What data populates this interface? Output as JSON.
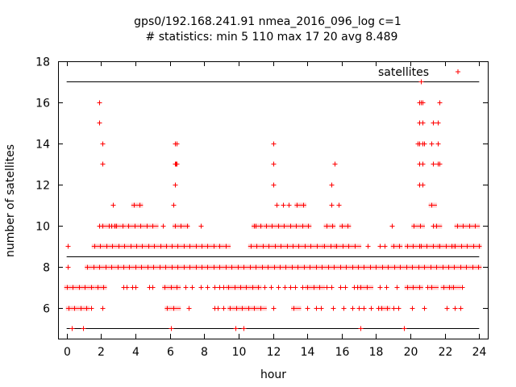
{
  "chart_data": {
    "type": "scatter",
    "title": "gps0/192.168.241.91 nmea_2016_096_log c=1",
    "subtitle": "# statistics: min 5 110 max 17 20 avg 8.489",
    "xlabel": "hour",
    "ylabel": "number of satellites",
    "xlim": [
      -0.5,
      24.5
    ],
    "ylim": [
      4.5,
      18
    ],
    "xticks": [
      0,
      2,
      4,
      6,
      8,
      10,
      12,
      14,
      16,
      18,
      20,
      22,
      24
    ],
    "yticks": [
      6,
      8,
      10,
      12,
      14,
      16,
      18
    ],
    "grid": false,
    "legend": {
      "position": "top-right",
      "entries": [
        "satellites"
      ]
    },
    "reference_lines": [
      {
        "label": "max",
        "y": 17
      },
      {
        "label": "avg",
        "y": 8.489
      },
      {
        "label": "min",
        "y": 5
      }
    ],
    "series": [
      {
        "name": "satellites",
        "color": "#ff0000",
        "marker": "plus",
        "levels": [
          {
            "y": 5,
            "x": [
              0.3,
              0.95,
              6.05,
              9.8,
              10.3,
              17.1,
              19.6
            ]
          },
          {
            "y": 6,
            "ranges": [
              [
                0.1,
                1.2
              ],
              [
                5.85,
                6.5
              ],
              [
                9.5,
                11.5
              ],
              [
                13.2,
                13.5
              ],
              [
                18.3,
                18.7
              ]
            ],
            "x": [
              1.4,
              2.1,
              7.1,
              8.6,
              8.8,
              9.1,
              12.0,
              14.0,
              14.5,
              14.8,
              15.5,
              16.1,
              16.6,
              17.0,
              17.3,
              17.7,
              18.1,
              19.0,
              19.3,
              20.1,
              20.8,
              22.1,
              22.6,
              22.9
            ]
          },
          {
            "y": 7,
            "ranges": [
              [
                0,
                1.5
              ],
              [
                1.8,
                2.2
              ],
              [
                5.7,
                6.5
              ],
              [
                9.4,
                11.2
              ],
              [
                14.0,
                14.9
              ],
              [
                17.1,
                17.7
              ],
              [
                19.8,
                20.6
              ],
              [
                21.2,
                21.5
              ],
              [
                21.9,
                22.3
              ],
              [
                22.5,
                22.8
              ]
            ],
            "x": [
              3.3,
              3.5,
              3.8,
              4.0,
              4.8,
              5.0,
              6.9,
              7.3,
              7.8,
              8.2,
              8.6,
              8.9,
              9.1,
              11.5,
              11.9,
              12.3,
              12.7,
              13.0,
              13.3,
              13.7,
              15.1,
              15.4,
              15.9,
              16.2,
              16.7,
              16.9,
              18.2,
              18.6,
              19.2,
              21.0,
              23.0
            ]
          },
          {
            "y": 8,
            "ranges": [
              [
                1.2,
                24.0
              ]
            ],
            "x": [
              0.05
            ]
          },
          {
            "y": 9,
            "ranges": [
              [
                1.6,
                5.8
              ],
              [
                6.1,
                8.6
              ],
              [
                8.9,
                9.4
              ],
              [
                10.7,
                14.8
              ],
              [
                15.0,
                15.6
              ],
              [
                15.7,
                17.0
              ],
              [
                19.0,
                19.4
              ],
              [
                19.8,
                20.3
              ],
              [
                20.6,
                21.6
              ],
              [
                21.7,
                22.5
              ],
              [
                22.6,
                24.0
              ]
            ],
            "x": [
              0.05,
              17.5,
              18.2,
              18.5,
              20.5
            ]
          },
          {
            "y": 10,
            "ranges": [
              [
                2.1,
                2.8
              ],
              [
                2.9,
                3.3
              ],
              [
                3.6,
                5.2
              ],
              [
                6.3,
                7.0
              ],
              [
                10.9,
                11.3
              ],
              [
                11.6,
                14.1
              ],
              [
                15.1,
                15.5
              ],
              [
                16.0,
                16.4
              ],
              [
                20.2,
                20.7
              ],
              [
                21.5,
                21.7
              ],
              [
                22.7,
                23.9
              ]
            ],
            "x": [
              1.9,
              2.6,
              5.6,
              7.8,
              11.0,
              18.9,
              21.3
            ]
          },
          {
            "y": 11,
            "ranges": [
              [
                3.9,
                4.3
              ],
              [
                13.4,
                13.8
              ],
              [
                21.2,
                21.4
              ]
            ],
            "x": [
              2.7,
              6.2,
              12.2,
              12.6,
              12.9,
              15.4,
              15.8
            ]
          },
          {
            "y": 12,
            "x": [
              6.3,
              12.0,
              15.4,
              20.5,
              20.7
            ]
          },
          {
            "y": 13,
            "x": [
              2.1,
              6.3,
              6.35,
              6.4,
              12.0,
              15.6,
              20.5,
              20.7,
              21.3,
              21.6,
              21.7
            ]
          },
          {
            "y": 14,
            "x": [
              2.1,
              6.3,
              6.4,
              12.0,
              20.4,
              20.5,
              20.7,
              20.8,
              21.2,
              21.6
            ]
          },
          {
            "y": 15,
            "x": [
              1.9,
              20.5,
              20.7,
              21.3,
              21.6
            ]
          },
          {
            "y": 16,
            "x": [
              1.9,
              20.5,
              20.6,
              20.7,
              21.7
            ]
          },
          {
            "y": 17,
            "x": [
              20.6
            ]
          }
        ]
      }
    ]
  }
}
